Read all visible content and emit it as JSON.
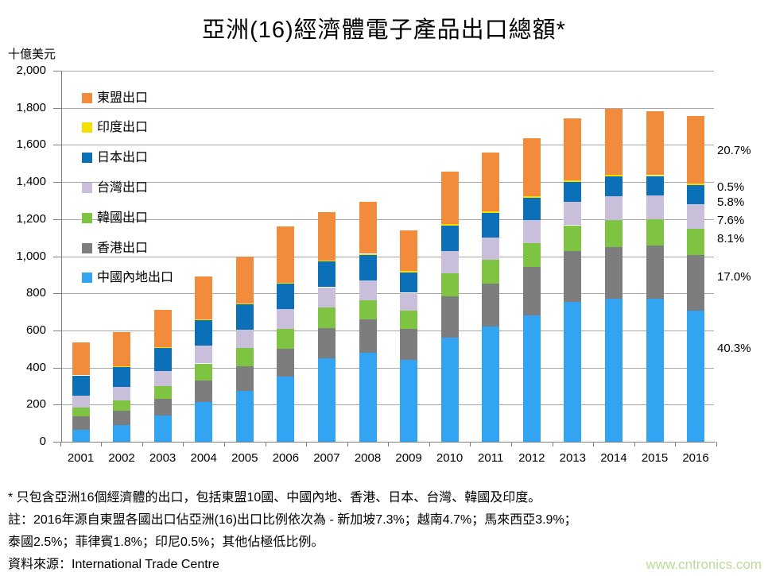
{
  "page": {
    "title": "亞洲(16)經濟體電子產品出口總額*",
    "y_axis_unit": "十億美元",
    "footnote_line1": "* 只包含亞洲16個經濟體的出口，包括東盟10國、中國內地、香港、日本、台灣、韓國及印度。",
    "footnote_line2": "註：2016年源自東盟各國出口佔亞洲(16)出口比例依次為 - 新加坡7.3%；越南4.7%；馬來西亞3.9%；",
    "footnote_line3": "泰國2.5%；菲律賓1.8%；印尼0.5%；其他佔極低比例。",
    "source": "資料來源：International Trade Centre",
    "watermark": "www.cntronics.com"
  },
  "colors": {
    "asean": "#F28B3C",
    "india": "#F2E000",
    "japan": "#0B70B8",
    "taiwan": "#C9BFDB",
    "korea": "#7EC341",
    "hongkong": "#7D7D7D",
    "china": "#33A4F2",
    "gridline": "#A6A6A6",
    "axis": "#808080",
    "text": "#000000",
    "watermark": "#BCDB96"
  },
  "chart_data": {
    "type": "bar",
    "stacked": true,
    "title": "亞洲(16)經濟體電子產品出口總額*",
    "ylabel": "十億美元",
    "xlabel": "",
    "ylim": [
      0,
      2000
    ],
    "ytick_step": 200,
    "ytick_labels": [
      "0",
      "200",
      "400",
      "600",
      "800",
      "1,000",
      "1,200",
      "1,400",
      "1,600",
      "1,800",
      "2,000"
    ],
    "grid": "horizontal",
    "legend_position": "upper-left-inside",
    "legend_order_top_to_bottom": [
      "東盟出口",
      "印度出口",
      "日本出口",
      "台灣出口",
      "韓國出口",
      "香港出口",
      "中國內地出口"
    ],
    "categories": [
      "2001",
      "2002",
      "2003",
      "2004",
      "2005",
      "2006",
      "2007",
      "2008",
      "2009",
      "2010",
      "2011",
      "2012",
      "2013",
      "2014",
      "2015",
      "2016"
    ],
    "series": [
      {
        "key": "china",
        "name": "中國內地出口",
        "share_2016": "40.3%",
        "values": [
          65,
          90,
          140,
          215,
          275,
          350,
          450,
          480,
          440,
          560,
          620,
          680,
          755,
          770,
          772,
          707
        ]
      },
      {
        "key": "hongkong",
        "name": "香港出口",
        "share_2016": "17.0%",
        "values": [
          72,
          77,
          91,
          115,
          133,
          152,
          163,
          178,
          168,
          222,
          232,
          262,
          272,
          280,
          287,
          298
        ]
      },
      {
        "key": "korea",
        "name": "韓國出口",
        "share_2016": "8.1%",
        "values": [
          48,
          57,
          70,
          92,
          99,
          108,
          112,
          105,
          100,
          128,
          130,
          130,
          140,
          145,
          140,
          142
        ]
      },
      {
        "key": "taiwan",
        "name": "台灣出口",
        "share_2016": "7.6%",
        "values": [
          65,
          72,
          80,
          95,
          97,
          105,
          108,
          105,
          95,
          120,
          120,
          122,
          125,
          130,
          130,
          133
        ]
      },
      {
        "key": "japan",
        "name": "日本出口",
        "share_2016": "5.8%",
        "values": [
          107,
          110,
          125,
          140,
          138,
          140,
          140,
          140,
          110,
          135,
          130,
          120,
          110,
          105,
          100,
          102
        ]
      },
      {
        "key": "india",
        "name": "印度出口",
        "share_2016": "0.5%",
        "values": [
          1,
          2,
          2,
          2,
          3,
          3,
          4,
          5,
          8,
          9,
          10,
          9,
          9,
          8,
          8,
          9
        ]
      },
      {
        "key": "asean",
        "name": "東盟出口",
        "share_2016": "20.7%",
        "values": [
          177,
          182,
          202,
          231,
          255,
          302,
          263,
          282,
          219,
          281,
          318,
          312,
          334,
          357,
          343,
          364
        ]
      }
    ],
    "totals": [
      535,
      590,
      710,
      890,
      1000,
      1160,
      1240,
      1295,
      1140,
      1455,
      1560,
      1635,
      1745,
      1795,
      1780,
      1755
    ],
    "right_percent_labels": [
      "20.7%",
      "0.5%",
      "5.8%",
      "7.6%",
      "8.1%",
      "17.0%",
      "40.3%"
    ]
  }
}
